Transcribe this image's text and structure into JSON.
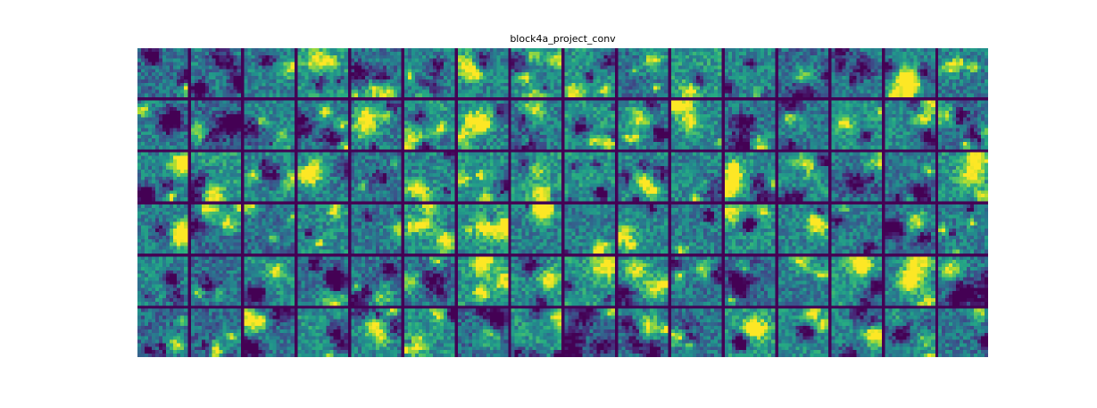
{
  "figure": {
    "title": "block4a_project_conv"
  },
  "grid": {
    "rows": 6,
    "cols": 16,
    "cell_resolution": 14,
    "colormap": "viridis",
    "background_color": "#440154"
  }
}
